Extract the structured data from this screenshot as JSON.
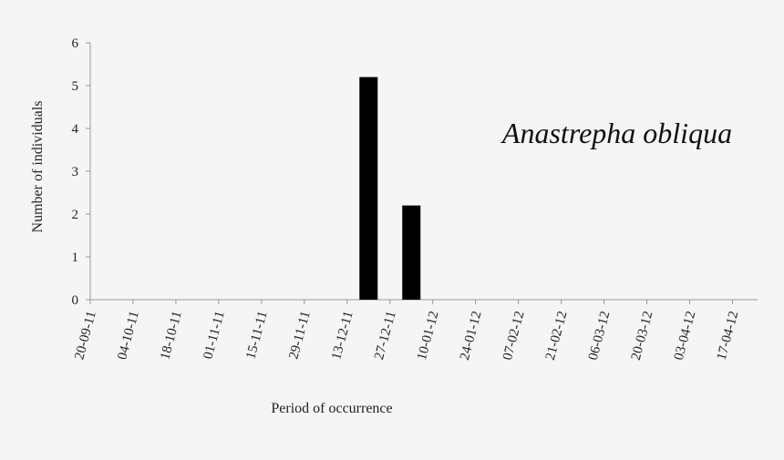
{
  "chart_data": {
    "type": "bar",
    "categories": [
      "20-09-11",
      "04-10-11",
      "18-10-11",
      "01-11-11",
      "15-11-11",
      "29-11-11",
      "13-12-11",
      "27-12-11",
      "10-01-12",
      "24-01-12",
      "07-02-12",
      "21-02-12",
      "06-03-12",
      "20-03-12",
      "03-04-12",
      "17-04-12"
    ],
    "values": [
      0,
      0,
      0,
      0,
      0,
      0,
      5.2,
      2.2,
      0,
      0,
      0,
      0,
      0,
      0,
      0,
      0
    ],
    "ylim": [
      0,
      6
    ],
    "yticks": [
      "0",
      "1",
      "2",
      "3",
      "4",
      "5",
      "6"
    ],
    "xlabel": "Period of occurrence",
    "ylabel": "Number of individuals",
    "annotation": "Anastrepha obliqua",
    "bar_color": "#000000",
    "axis_color": "#999999",
    "grid": false
  }
}
